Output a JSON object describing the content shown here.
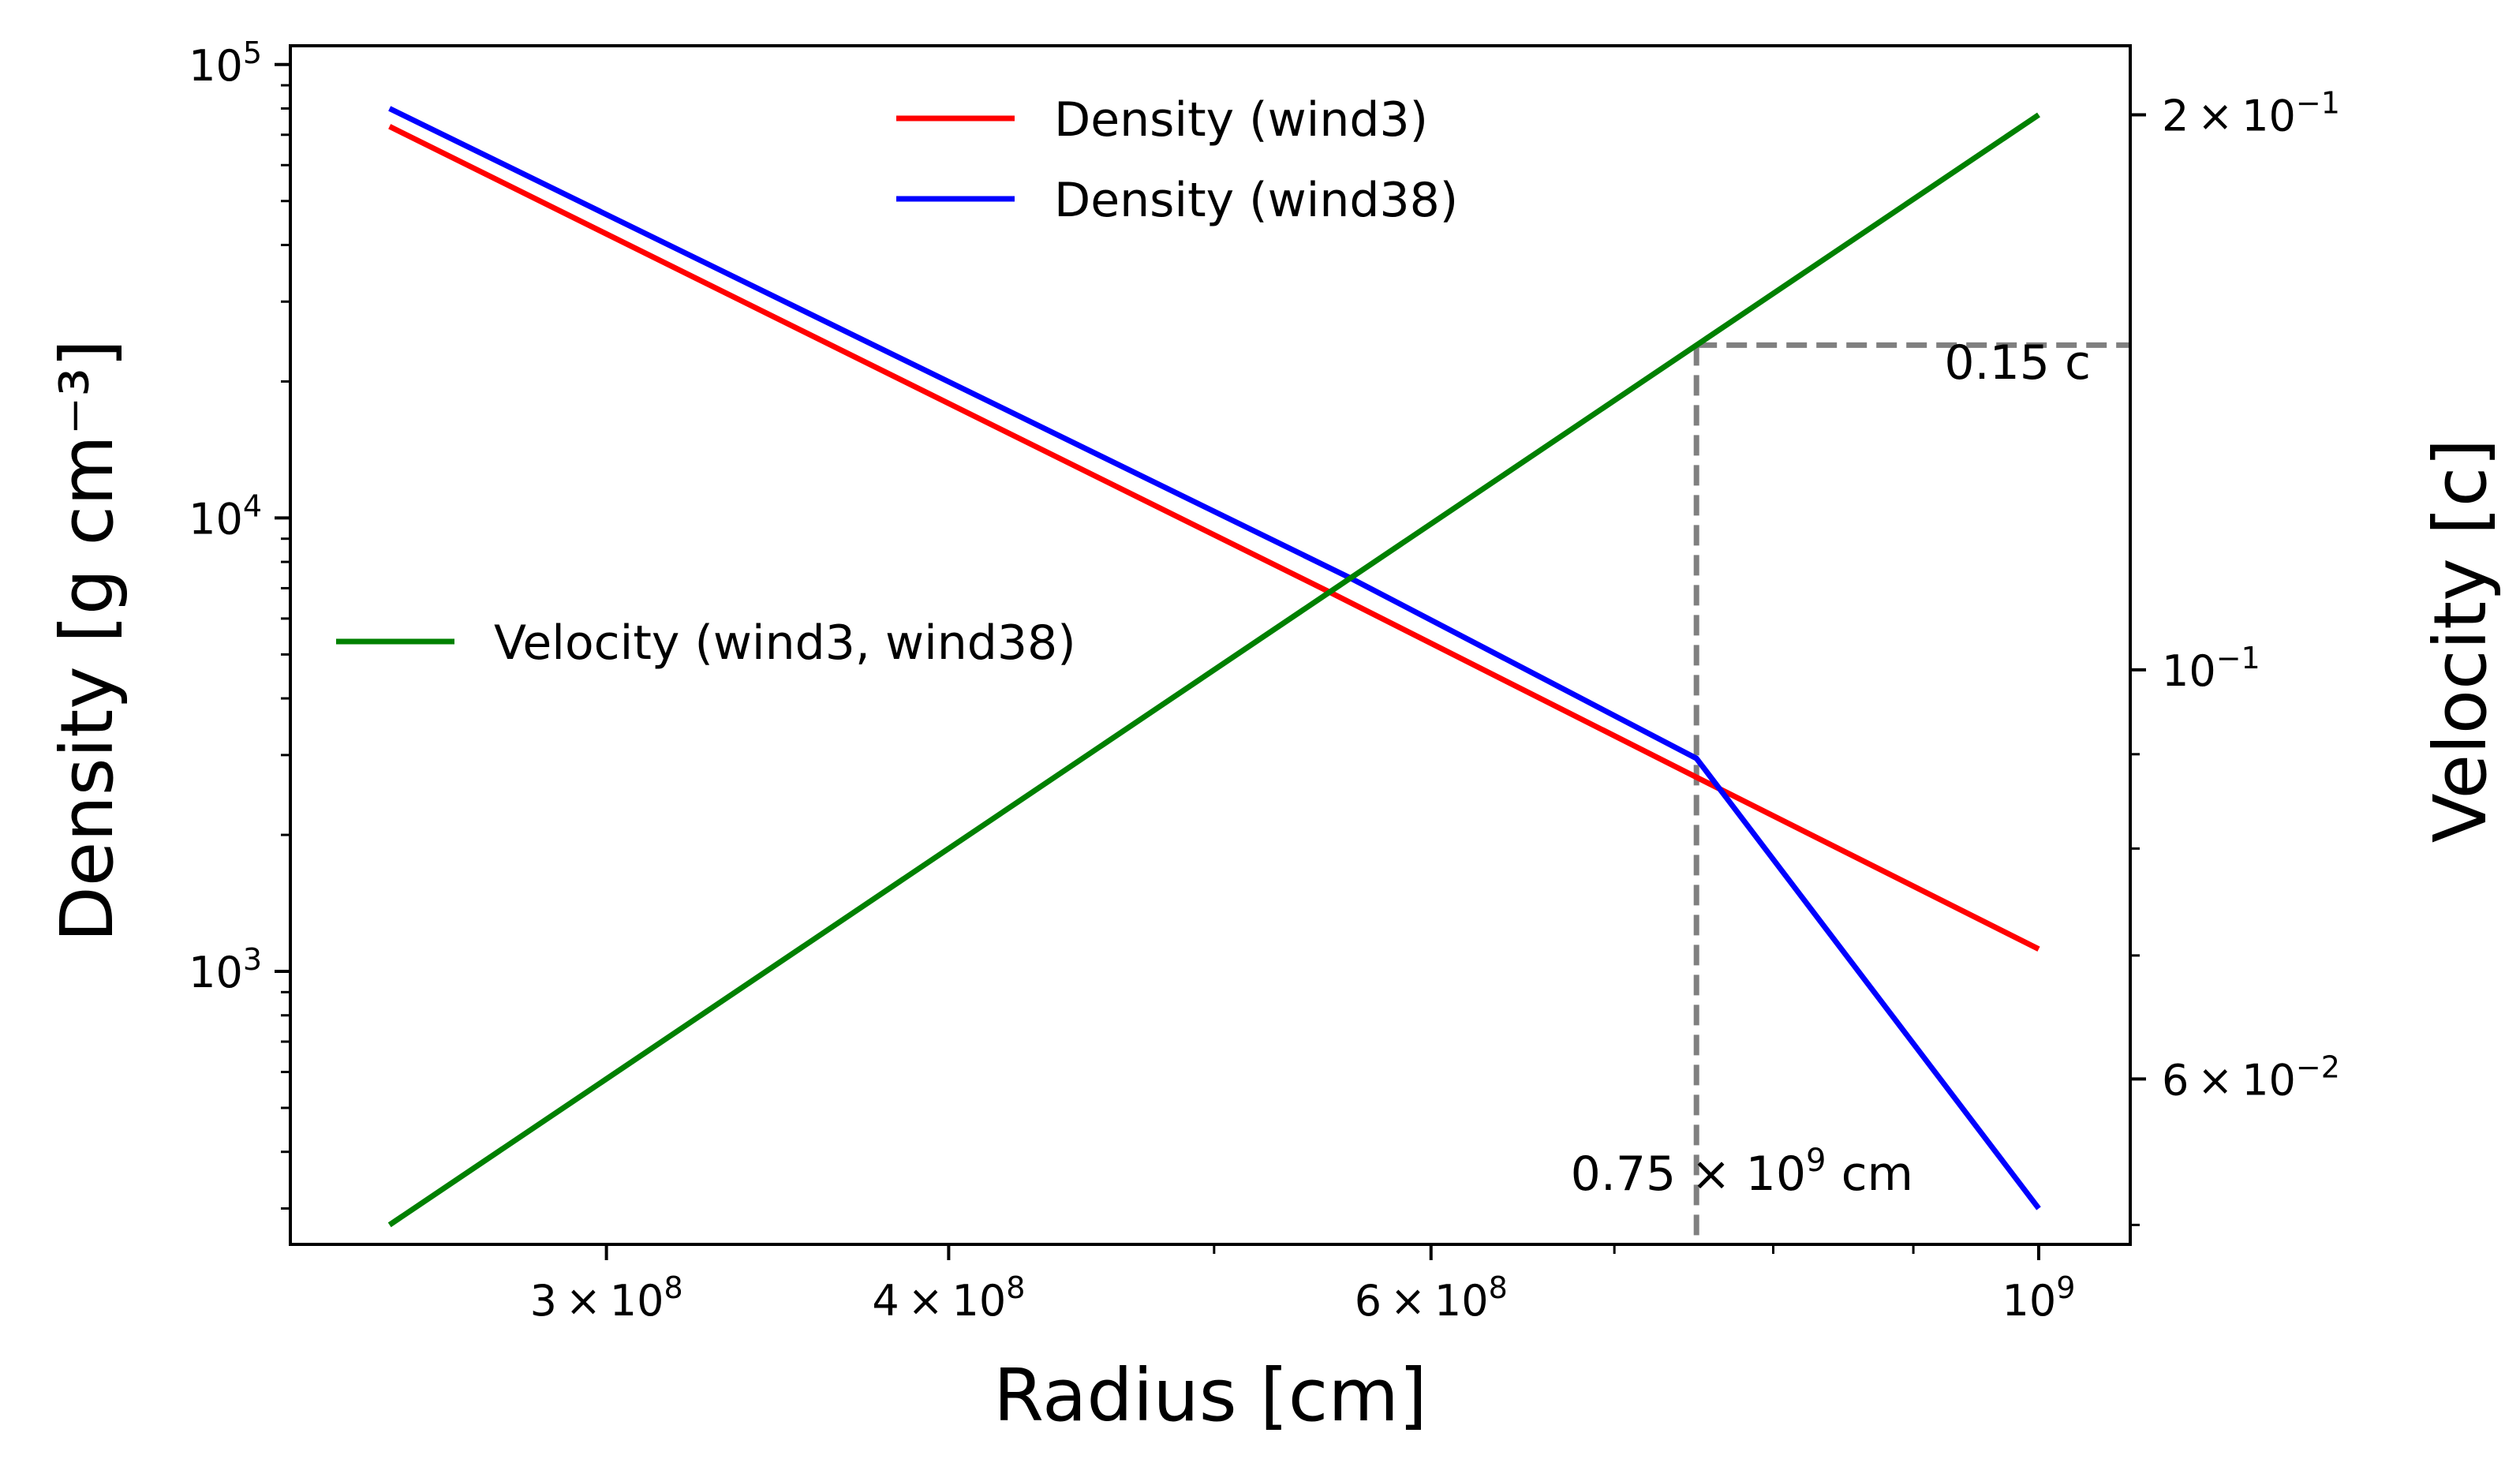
{
  "chart_data": {
    "type": "line",
    "xlabel": "Radius [cm]",
    "ylabel_left": "Density [g cm⁻³]",
    "ylabel_right": "Velocity [c]",
    "x_scale": "log",
    "y_left_scale": "log",
    "y_right_scale": "log",
    "xlim": [
      230000000,
      1080000000
    ],
    "ylim_left": [
      250,
      110000
    ],
    "ylim_right": [
      0.0488,
      0.218
    ],
    "grid": false,
    "x_ticks": [
      {
        "value": 300000000,
        "mantissa": "3",
        "times": "×",
        "base": "10",
        "exp": "8"
      },
      {
        "value": 400000000,
        "mantissa": "4",
        "times": "×",
        "base": "10",
        "exp": "8"
      },
      {
        "value": 600000000,
        "mantissa": "6",
        "times": "×",
        "base": "10",
        "exp": "8"
      },
      {
        "value": 1000000000,
        "mantissa": "",
        "times": "",
        "base": "10",
        "exp": "9"
      }
    ],
    "y_left_ticks": [
      {
        "value": 1000,
        "base": "10",
        "exp": "3"
      },
      {
        "value": 10000,
        "base": "10",
        "exp": "4"
      },
      {
        "value": 100000,
        "base": "10",
        "exp": "5"
      }
    ],
    "y_right_ticks": [
      {
        "value": 0.06,
        "mantissa": "6",
        "times": "×",
        "base": "10",
        "exp": "−2"
      },
      {
        "value": 0.1,
        "mantissa": "",
        "times": "",
        "base": "10",
        "exp": "−1"
      },
      {
        "value": 0.2,
        "mantissa": "2",
        "times": "×",
        "base": "10",
        "exp": "−1"
      }
    ],
    "series": [
      {
        "name": "Density (wind3)",
        "axis": "left",
        "color": "#ff0000",
        "x": [
          250000000,
          550000000,
          750000000,
          1000000000
        ],
        "y": [
          73000,
          6900,
          2680,
          1120
        ]
      },
      {
        "name": "Density (wind38)",
        "axis": "left",
        "color": "#0000ff",
        "x": [
          250000000,
          560000000,
          750000000,
          1000000000
        ],
        "y": [
          80000,
          7400,
          2950,
          300
        ]
      },
      {
        "name": "Velocity (wind3, wind38)",
        "axis": "right",
        "color": "#008000",
        "x": [
          250000000,
          1000000000
        ],
        "y": [
          0.05,
          0.2
        ]
      }
    ],
    "reference_lines": {
      "color": "#808080",
      "x": 750000000,
      "y": 0.15
    },
    "annotations": {
      "velocity_label": "0.15 c",
      "radius_label": {
        "mantissa": "0.75",
        "times": "×",
        "base": "10",
        "exp": "9",
        "unit": "cm"
      }
    },
    "legends": [
      {
        "placement": "top-center",
        "entries": [
          "Density (wind3)",
          "Density (wind38)"
        ]
      },
      {
        "placement": "center-left",
        "entries": [
          "Velocity (wind3, wind38)"
        ]
      }
    ]
  }
}
